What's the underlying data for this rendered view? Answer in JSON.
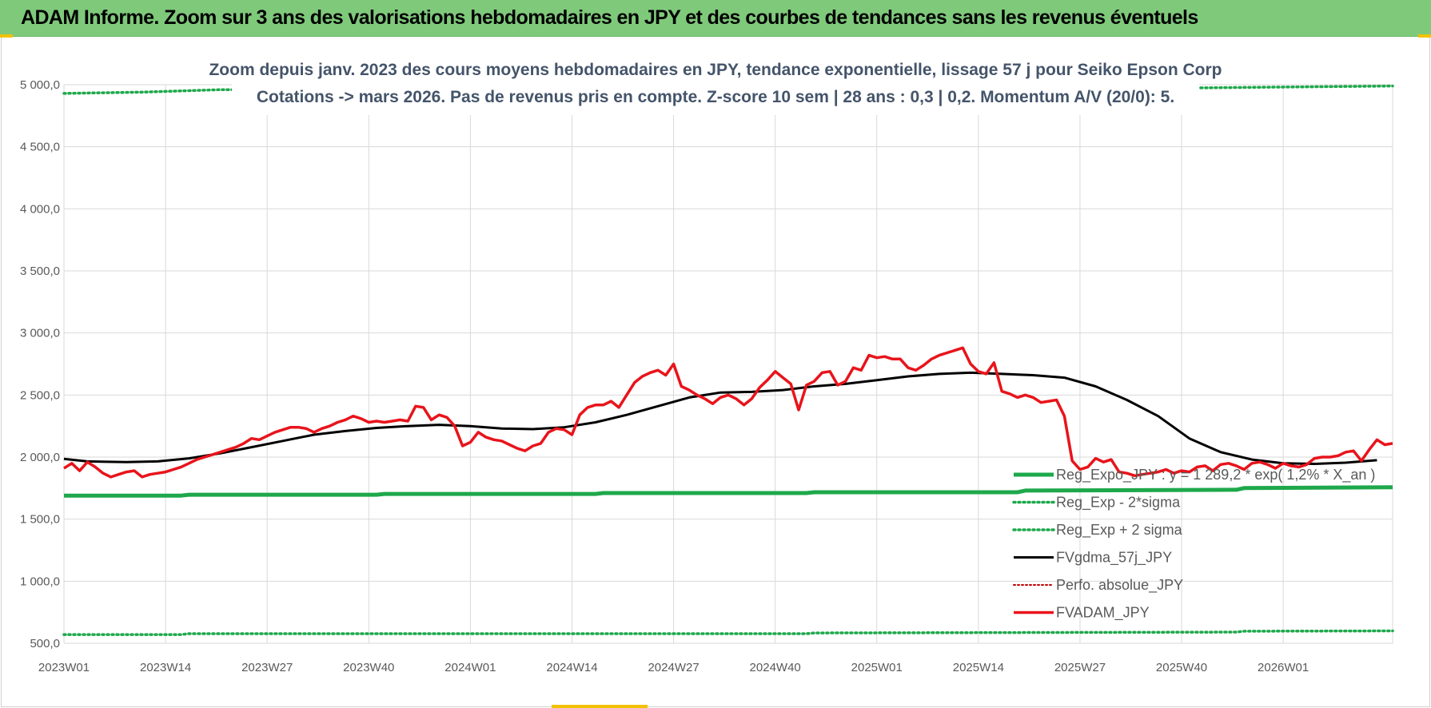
{
  "header": {
    "title": "ADAM Informe. Zoom sur 3 ans des valorisations hebdomadaires en JPY et des courbes de tendances sans les revenus éventuels"
  },
  "colors": {
    "title_bar": "#7fc97b",
    "reg_expo": "#1ea84b",
    "sigma_bands": "#1ea84b",
    "fvgdma": "#000000",
    "perfo": "#c00000",
    "fvadam": "#e8141b",
    "grid": "#d9d9d9",
    "subtitle": "#44546a"
  },
  "chart_data": {
    "type": "line",
    "subtitle_lines": [
      "Zoom depuis janv. 2023 des cours moyens hebdomadaires en JPY, tendance exponentielle, lissage 57 j pour Seiko Epson Corp",
      "Cotations -> mars 2026. Pas de revenus pris en compte. Z-score 10 sem | 28 ans : 0,3 | 0,2. Momentum A/V (20/0): 5."
    ],
    "ylim": [
      500,
      5000
    ],
    "y_ticks": [
      "500,0",
      "1 000,0",
      "1 500,0",
      "2 000,0",
      "2 500,0",
      "3 000,0",
      "3 500,0",
      "4 000,0",
      "4 500,0",
      "5 000,0"
    ],
    "x_tick_labels": [
      "2023W01",
      "2023W14",
      "2023W27",
      "2023W40",
      "2024W01",
      "2024W14",
      "2024W27",
      "2024W40",
      "2025W01",
      "2025W14",
      "2025W27",
      "2025W40",
      "2026W01"
    ],
    "x_tick_step_weeks": 13,
    "x_total_weeks": 170,
    "grid": true,
    "legend_position": "bottom-right",
    "legend": [
      {
        "key": "reg_expo",
        "label": "Reg_Expo_JPY : y = 1 289,2 * exp( 1,2% * X_an )",
        "style": "solid-thick"
      },
      {
        "key": "reg_minus",
        "label": "Reg_Exp - 2*sigma",
        "style": "dotted"
      },
      {
        "key": "reg_plus",
        "label": "Reg_Exp + 2 sigma",
        "style": "dotted"
      },
      {
        "key": "fvgdma",
        "label": "FVgdma_57j_JPY",
        "style": "solid"
      },
      {
        "key": "perfo",
        "label": "Perfo. absolue_JPY",
        "style": "dotted"
      },
      {
        "key": "fvadam",
        "label": "FVADAM_JPY",
        "style": "solid-thick"
      }
    ],
    "series": [
      {
        "key": "reg_expo",
        "values_by_week": [
          [
            0,
            1690
          ],
          [
            15,
            1690
          ],
          [
            16,
            1697
          ],
          [
            40,
            1697
          ],
          [
            41,
            1703
          ],
          [
            68,
            1703
          ],
          [
            69,
            1710
          ],
          [
            95,
            1710
          ],
          [
            96,
            1717
          ],
          [
            122,
            1717
          ],
          [
            123,
            1730
          ],
          [
            150,
            1737
          ],
          [
            151,
            1750
          ],
          [
            170,
            1757
          ]
        ]
      },
      {
        "key": "reg_minus",
        "values_by_week": [
          [
            0,
            570
          ],
          [
            15,
            570
          ],
          [
            16,
            577
          ],
          [
            95,
            577
          ],
          [
            96,
            583
          ],
          [
            150,
            590
          ],
          [
            151,
            597
          ],
          [
            170,
            600
          ]
        ]
      },
      {
        "key": "reg_plus",
        "values_by_week": [
          [
            0,
            4930
          ],
          [
            10,
            4940
          ],
          [
            20,
            4960
          ],
          [
            130,
            4965
          ],
          [
            170,
            4990
          ]
        ]
      },
      {
        "key": "fvgdma",
        "values_by_week": [
          [
            0,
            1985
          ],
          [
            3,
            1965
          ],
          [
            8,
            1960
          ],
          [
            12,
            1965
          ],
          [
            16,
            1990
          ],
          [
            20,
            2030
          ],
          [
            24,
            2080
          ],
          [
            28,
            2130
          ],
          [
            32,
            2180
          ],
          [
            36,
            2210
          ],
          [
            40,
            2235
          ],
          [
            44,
            2250
          ],
          [
            48,
            2260
          ],
          [
            52,
            2250
          ],
          [
            56,
            2230
          ],
          [
            60,
            2225
          ],
          [
            64,
            2240
          ],
          [
            68,
            2280
          ],
          [
            72,
            2340
          ],
          [
            76,
            2410
          ],
          [
            80,
            2480
          ],
          [
            84,
            2520
          ],
          [
            88,
            2525
          ],
          [
            92,
            2540
          ],
          [
            96,
            2570
          ],
          [
            100,
            2590
          ],
          [
            104,
            2620
          ],
          [
            108,
            2650
          ],
          [
            112,
            2670
          ],
          [
            116,
            2680
          ],
          [
            120,
            2670
          ],
          [
            124,
            2660
          ],
          [
            128,
            2640
          ],
          [
            132,
            2570
          ],
          [
            136,
            2460
          ],
          [
            140,
            2330
          ],
          [
            144,
            2150
          ],
          [
            148,
            2040
          ],
          [
            152,
            1980
          ],
          [
            156,
            1950
          ],
          [
            160,
            1945
          ],
          [
            164,
            1955
          ],
          [
            168,
            1975
          ],
          [
            172,
            1990
          ],
          [
            176,
            2005
          ],
          [
            180,
            2010
          ],
          [
            184,
            2000
          ],
          [
            187,
            1985
          ]
        ]
      },
      {
        "key": "fvadam",
        "values_by_week": [
          [
            0,
            1910
          ],
          [
            1,
            1950
          ],
          [
            2,
            1890
          ],
          [
            3,
            1960
          ],
          [
            4,
            1920
          ],
          [
            5,
            1870
          ],
          [
            6,
            1840
          ],
          [
            7,
            1860
          ],
          [
            8,
            1880
          ],
          [
            9,
            1890
          ],
          [
            10,
            1840
          ],
          [
            11,
            1860
          ],
          [
            12,
            1870
          ],
          [
            13,
            1880
          ],
          [
            14,
            1900
          ],
          [
            15,
            1920
          ],
          [
            16,
            1950
          ],
          [
            17,
            1980
          ],
          [
            18,
            2000
          ],
          [
            19,
            2020
          ],
          [
            20,
            2040
          ],
          [
            21,
            2060
          ],
          [
            22,
            2080
          ],
          [
            23,
            2110
          ],
          [
            24,
            2150
          ],
          [
            25,
            2140
          ],
          [
            26,
            2170
          ],
          [
            27,
            2200
          ],
          [
            28,
            2220
          ],
          [
            29,
            2240
          ],
          [
            30,
            2240
          ],
          [
            31,
            2230
          ],
          [
            32,
            2200
          ],
          [
            33,
            2230
          ],
          [
            34,
            2250
          ],
          [
            35,
            2280
          ],
          [
            36,
            2300
          ],
          [
            37,
            2330
          ],
          [
            38,
            2310
          ],
          [
            39,
            2280
          ],
          [
            40,
            2290
          ],
          [
            41,
            2280
          ],
          [
            42,
            2290
          ],
          [
            43,
            2300
          ],
          [
            44,
            2290
          ],
          [
            45,
            2410
          ],
          [
            46,
            2400
          ],
          [
            47,
            2300
          ],
          [
            48,
            2340
          ],
          [
            49,
            2320
          ],
          [
            50,
            2250
          ],
          [
            51,
            2090
          ],
          [
            52,
            2120
          ],
          [
            53,
            2200
          ],
          [
            54,
            2160
          ],
          [
            55,
            2140
          ],
          [
            56,
            2130
          ],
          [
            57,
            2100
          ],
          [
            58,
            2070
          ],
          [
            59,
            2050
          ],
          [
            60,
            2090
          ],
          [
            61,
            2110
          ],
          [
            62,
            2200
          ],
          [
            63,
            2230
          ],
          [
            64,
            2220
          ],
          [
            65,
            2180
          ],
          [
            66,
            2340
          ],
          [
            67,
            2400
          ],
          [
            68,
            2420
          ],
          [
            69,
            2420
          ],
          [
            70,
            2450
          ],
          [
            71,
            2400
          ],
          [
            72,
            2500
          ],
          [
            73,
            2600
          ],
          [
            74,
            2650
          ],
          [
            75,
            2680
          ],
          [
            76,
            2700
          ],
          [
            77,
            2660
          ],
          [
            78,
            2750
          ],
          [
            79,
            2570
          ],
          [
            80,
            2540
          ],
          [
            81,
            2500
          ],
          [
            82,
            2470
          ],
          [
            83,
            2430
          ],
          [
            84,
            2480
          ],
          [
            85,
            2500
          ],
          [
            86,
            2470
          ],
          [
            87,
            2420
          ],
          [
            88,
            2470
          ],
          [
            89,
            2560
          ],
          [
            90,
            2620
          ],
          [
            91,
            2690
          ],
          [
            92,
            2640
          ],
          [
            93,
            2590
          ],
          [
            94,
            2380
          ],
          [
            95,
            2580
          ],
          [
            96,
            2610
          ],
          [
            97,
            2680
          ],
          [
            98,
            2690
          ],
          [
            99,
            2580
          ],
          [
            100,
            2610
          ],
          [
            101,
            2720
          ],
          [
            102,
            2700
          ],
          [
            103,
            2820
          ],
          [
            104,
            2800
          ],
          [
            105,
            2810
          ],
          [
            106,
            2790
          ],
          [
            107,
            2790
          ],
          [
            108,
            2720
          ],
          [
            109,
            2700
          ],
          [
            110,
            2740
          ],
          [
            111,
            2790
          ],
          [
            112,
            2820
          ],
          [
            113,
            2840
          ],
          [
            114,
            2860
          ],
          [
            115,
            2880
          ],
          [
            116,
            2750
          ],
          [
            117,
            2690
          ],
          [
            118,
            2670
          ],
          [
            119,
            2760
          ],
          [
            120,
            2530
          ],
          [
            121,
            2510
          ],
          [
            122,
            2480
          ],
          [
            123,
            2500
          ],
          [
            124,
            2480
          ],
          [
            125,
            2440
          ],
          [
            126,
            2450
          ],
          [
            127,
            2460
          ],
          [
            128,
            2330
          ],
          [
            129,
            1970
          ],
          [
            130,
            1900
          ],
          [
            131,
            1920
          ],
          [
            132,
            1990
          ],
          [
            133,
            1960
          ],
          [
            134,
            1980
          ],
          [
            135,
            1880
          ],
          [
            136,
            1870
          ],
          [
            137,
            1850
          ],
          [
            138,
            1860
          ],
          [
            139,
            1870
          ],
          [
            140,
            1880
          ],
          [
            141,
            1900
          ],
          [
            142,
            1870
          ],
          [
            143,
            1890
          ],
          [
            144,
            1880
          ],
          [
            145,
            1920
          ],
          [
            146,
            1930
          ],
          [
            147,
            1890
          ],
          [
            148,
            1940
          ],
          [
            149,
            1950
          ],
          [
            150,
            1930
          ],
          [
            151,
            1900
          ],
          [
            152,
            1950
          ],
          [
            153,
            1960
          ],
          [
            154,
            1940
          ],
          [
            155,
            1910
          ],
          [
            156,
            1950
          ],
          [
            157,
            1930
          ],
          [
            158,
            1920
          ],
          [
            159,
            1940
          ],
          [
            160,
            1990
          ],
          [
            161,
            2000
          ],
          [
            162,
            2000
          ],
          [
            163,
            2010
          ],
          [
            164,
            2040
          ],
          [
            165,
            2050
          ],
          [
            166,
            1970
          ],
          [
            167,
            2060
          ],
          [
            168,
            2140
          ],
          [
            169,
            2100
          ],
          [
            170,
            2110
          ],
          [
            171,
            2040
          ],
          [
            172,
            1990
          ],
          [
            173,
            1980
          ],
          [
            174,
            1975
          ]
        ]
      }
    ]
  }
}
